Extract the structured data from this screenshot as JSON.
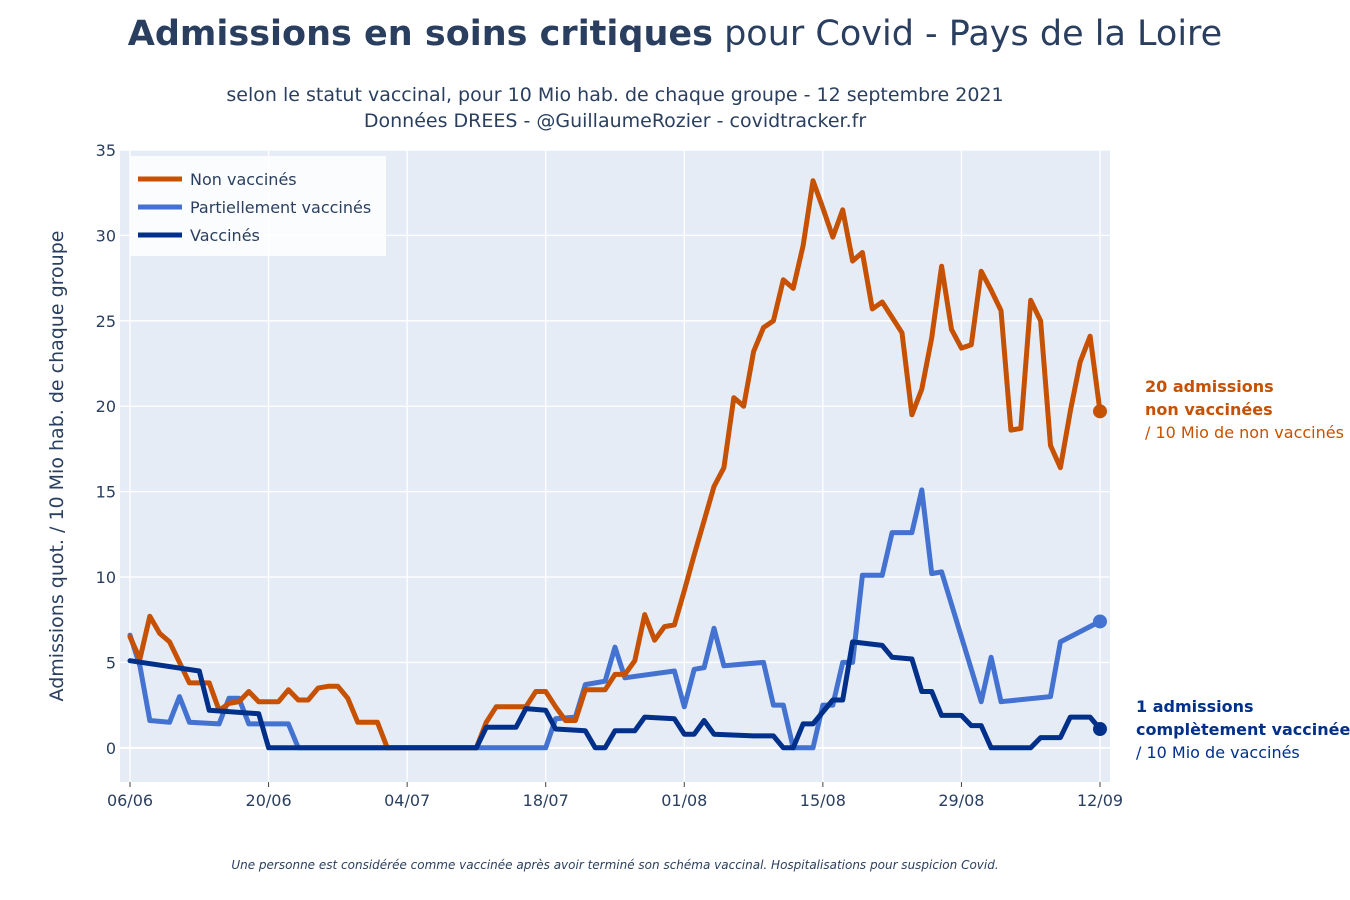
{
  "title": {
    "bold": "Admissions en soins critiques",
    "normal": " pour Covid - Pays de la Loire"
  },
  "subtitle": {
    "line1": "selon le statut vaccinal, pour 10 Mio hab. de chaque groupe - 12 septembre 2021",
    "line2": "Données DREES - @GuillaumeRozier - covidtracker.fr"
  },
  "footnote": "Une personne est considérée comme vaccinée après avoir terminé son schéma vaccinal. Hospitalisations pour suspicion Covid.",
  "annotations": {
    "unvax": {
      "line1": "20 admissions",
      "line2": "non vaccinées",
      "line3": "/ 10 Mio de non vaccinés"
    },
    "vax": {
      "line1": "1 admissions",
      "line2": "complètement vaccinée",
      "line3": "/ 10 Mio de vaccinés"
    }
  },
  "colors": {
    "unvax": "#c65102",
    "partial": "#4472d0",
    "vax": "#00308a",
    "plot_bg": "#e5ecf6",
    "text": "#2a3f5f"
  },
  "chart_data": {
    "type": "line",
    "ylabel": "Admissions quot. / 10 Mio hab. de chaque groupe",
    "ylim": [
      -2,
      35
    ],
    "yticks": [
      0,
      5,
      10,
      15,
      20,
      25,
      30,
      35
    ],
    "xlim": [
      "2021-06-06",
      "2021-09-12"
    ],
    "xticks": [
      {
        "date": "2021-06-06",
        "label": "06/06"
      },
      {
        "date": "2021-06-20",
        "label": "20/06"
      },
      {
        "date": "2021-07-04",
        "label": "04/07"
      },
      {
        "date": "2021-07-18",
        "label": "18/07"
      },
      {
        "date": "2021-08-01",
        "label": "01/08"
      },
      {
        "date": "2021-08-15",
        "label": "15/08"
      },
      {
        "date": "2021-08-29",
        "label": "29/08"
      },
      {
        "date": "2021-09-12",
        "label": "12/09"
      }
    ],
    "grid": true,
    "legend_position": "top-left",
    "series": [
      {
        "name": "Non vaccinés",
        "color": "#c65102",
        "points": [
          [
            "2021-06-06",
            6.5
          ],
          [
            "2021-06-07",
            5.2
          ],
          [
            "2021-06-08",
            7.7
          ],
          [
            "2021-06-09",
            6.7
          ],
          [
            "2021-06-10",
            6.2
          ],
          [
            "2021-06-11",
            5.0
          ],
          [
            "2021-06-12",
            3.8
          ],
          [
            "2021-06-13",
            3.8
          ],
          [
            "2021-06-14",
            3.8
          ],
          [
            "2021-06-15",
            2.2
          ],
          [
            "2021-06-16",
            2.6
          ],
          [
            "2021-06-17",
            2.7
          ],
          [
            "2021-06-18",
            3.3
          ],
          [
            "2021-06-19",
            2.7
          ],
          [
            "2021-06-20",
            2.7
          ],
          [
            "2021-06-21",
            2.7
          ],
          [
            "2021-06-22",
            3.4
          ],
          [
            "2021-06-23",
            2.8
          ],
          [
            "2021-06-24",
            2.8
          ],
          [
            "2021-06-25",
            3.5
          ],
          [
            "2021-06-26",
            3.6
          ],
          [
            "2021-06-27",
            3.6
          ],
          [
            "2021-06-28",
            2.9
          ],
          [
            "2021-06-29",
            1.5
          ],
          [
            "2021-06-30",
            1.5
          ],
          [
            "2021-07-01",
            1.5
          ],
          [
            "2021-07-02",
            0
          ],
          [
            "2021-07-03",
            0
          ],
          [
            "2021-07-04",
            0
          ],
          [
            "2021-07-05",
            0
          ],
          [
            "2021-07-06",
            0
          ],
          [
            "2021-07-07",
            0
          ],
          [
            "2021-07-08",
            0
          ],
          [
            "2021-07-09",
            0
          ],
          [
            "2021-07-10",
            0
          ],
          [
            "2021-07-11",
            0
          ],
          [
            "2021-07-12",
            1.5
          ],
          [
            "2021-07-13",
            2.4
          ],
          [
            "2021-07-14",
            2.4
          ],
          [
            "2021-07-15",
            2.4
          ],
          [
            "2021-07-16",
            2.4
          ],
          [
            "2021-07-17",
            3.3
          ],
          [
            "2021-07-18",
            3.3
          ],
          [
            "2021-07-19",
            2.4
          ],
          [
            "2021-07-20",
            1.6
          ],
          [
            "2021-07-21",
            1.6
          ],
          [
            "2021-07-22",
            3.4
          ],
          [
            "2021-07-23",
            3.4
          ],
          [
            "2021-07-24",
            3.4
          ],
          [
            "2021-07-25",
            4.3
          ],
          [
            "2021-07-26",
            4.3
          ],
          [
            "2021-07-27",
            5.1
          ],
          [
            "2021-07-28",
            7.8
          ],
          [
            "2021-07-29",
            6.3
          ],
          [
            "2021-07-30",
            7.1
          ],
          [
            "2021-07-31",
            7.2
          ],
          [
            "2021-08-01",
            9.2
          ],
          [
            "2021-08-02",
            11.3
          ],
          [
            "2021-08-03",
            13.3
          ],
          [
            "2021-08-04",
            15.3
          ],
          [
            "2021-08-05",
            16.4
          ],
          [
            "2021-08-06",
            20.5
          ],
          [
            "2021-08-07",
            20.0
          ],
          [
            "2021-08-08",
            23.2
          ],
          [
            "2021-08-09",
            24.6
          ],
          [
            "2021-08-10",
            25.0
          ],
          [
            "2021-08-11",
            27.4
          ],
          [
            "2021-08-12",
            26.9
          ],
          [
            "2021-08-13",
            29.4
          ],
          [
            "2021-08-14",
            33.2
          ],
          [
            "2021-08-15",
            31.6
          ],
          [
            "2021-08-16",
            29.9
          ],
          [
            "2021-08-17",
            31.5
          ],
          [
            "2021-08-18",
            28.5
          ],
          [
            "2021-08-19",
            29.0
          ],
          [
            "2021-08-20",
            25.7
          ],
          [
            "2021-08-21",
            26.1
          ],
          [
            "2021-08-22",
            25.2
          ],
          [
            "2021-08-23",
            24.3
          ],
          [
            "2021-08-24",
            19.5
          ],
          [
            "2021-08-25",
            21.0
          ],
          [
            "2021-08-26",
            24.0
          ],
          [
            "2021-08-27",
            28.2
          ],
          [
            "2021-08-28",
            24.5
          ],
          [
            "2021-08-29",
            23.4
          ],
          [
            "2021-08-30",
            23.6
          ],
          [
            "2021-08-31",
            27.9
          ],
          [
            "2021-09-01",
            26.8
          ],
          [
            "2021-09-02",
            25.6
          ],
          [
            "2021-09-03",
            18.6
          ],
          [
            "2021-09-04",
            18.7
          ],
          [
            "2021-09-05",
            26.2
          ],
          [
            "2021-09-06",
            25.0
          ],
          [
            "2021-09-07",
            17.7
          ],
          [
            "2021-09-08",
            16.4
          ],
          [
            "2021-09-09",
            19.7
          ],
          [
            "2021-09-10",
            22.6
          ],
          [
            "2021-09-11",
            24.1
          ],
          [
            "2021-09-12",
            19.7
          ]
        ]
      },
      {
        "name": "Partiellement vaccinés",
        "color": "#4472d0",
        "points": [
          [
            "2021-06-06",
            6.6
          ],
          [
            "2021-06-07",
            4.8
          ],
          [
            "2021-06-08",
            1.6
          ],
          [
            "2021-06-10",
            1.5
          ],
          [
            "2021-06-11",
            3.0
          ],
          [
            "2021-06-12",
            1.5
          ],
          [
            "2021-06-15",
            1.4
          ],
          [
            "2021-06-16",
            2.9
          ],
          [
            "2021-06-17",
            2.9
          ],
          [
            "2021-06-18",
            1.4
          ],
          [
            "2021-06-22",
            1.4
          ],
          [
            "2021-06-23",
            0
          ],
          [
            "2021-07-18",
            0
          ],
          [
            "2021-07-19",
            1.7
          ],
          [
            "2021-07-21",
            1.8
          ],
          [
            "2021-07-22",
            3.7
          ],
          [
            "2021-07-24",
            3.9
          ],
          [
            "2021-07-25",
            5.9
          ],
          [
            "2021-07-26",
            4.1
          ],
          [
            "2021-07-31",
            4.5
          ],
          [
            "2021-08-01",
            2.4
          ],
          [
            "2021-08-02",
            4.6
          ],
          [
            "2021-08-03",
            4.7
          ],
          [
            "2021-08-04",
            7.0
          ],
          [
            "2021-08-05",
            4.8
          ],
          [
            "2021-08-09",
            5.0
          ],
          [
            "2021-08-10",
            2.5
          ],
          [
            "2021-08-11",
            2.5
          ],
          [
            "2021-08-12",
            0
          ],
          [
            "2021-08-14",
            0
          ],
          [
            "2021-08-15",
            2.5
          ],
          [
            "2021-08-16",
            2.5
          ],
          [
            "2021-08-17",
            5.0
          ],
          [
            "2021-08-18",
            5.0
          ],
          [
            "2021-08-19",
            10.1
          ],
          [
            "2021-08-21",
            10.1
          ],
          [
            "2021-08-22",
            12.6
          ],
          [
            "2021-08-24",
            12.6
          ],
          [
            "2021-08-25",
            15.1
          ],
          [
            "2021-08-26",
            10.2
          ],
          [
            "2021-08-27",
            10.3
          ],
          [
            "2021-08-31",
            2.7
          ],
          [
            "2021-09-01",
            5.3
          ],
          [
            "2021-09-02",
            2.7
          ],
          [
            "2021-09-07",
            3.0
          ],
          [
            "2021-09-08",
            6.2
          ],
          [
            "2021-09-12",
            7.4
          ]
        ]
      },
      {
        "name": "Vaccinés",
        "color": "#00308a",
        "points": [
          [
            "2021-06-06",
            5.1
          ],
          [
            "2021-06-13",
            4.5
          ],
          [
            "2021-06-14",
            2.2
          ],
          [
            "2021-06-19",
            2.0
          ],
          [
            "2021-06-20",
            0
          ],
          [
            "2021-07-11",
            0
          ],
          [
            "2021-07-12",
            1.2
          ],
          [
            "2021-07-15",
            1.2
          ],
          [
            "2021-07-16",
            2.3
          ],
          [
            "2021-07-18",
            2.2
          ],
          [
            "2021-07-19",
            1.1
          ],
          [
            "2021-07-22",
            1.0
          ],
          [
            "2021-07-23",
            0
          ],
          [
            "2021-07-24",
            0
          ],
          [
            "2021-07-25",
            1.0
          ],
          [
            "2021-07-27",
            1.0
          ],
          [
            "2021-07-28",
            1.8
          ],
          [
            "2021-07-31",
            1.7
          ],
          [
            "2021-08-01",
            0.8
          ],
          [
            "2021-08-02",
            0.8
          ],
          [
            "2021-08-03",
            1.6
          ],
          [
            "2021-08-04",
            0.8
          ],
          [
            "2021-08-08",
            0.7
          ],
          [
            "2021-08-10",
            0.7
          ],
          [
            "2021-08-11",
            0
          ],
          [
            "2021-08-12",
            0
          ],
          [
            "2021-08-13",
            1.4
          ],
          [
            "2021-08-14",
            1.4
          ],
          [
            "2021-08-16",
            2.8
          ],
          [
            "2021-08-17",
            2.8
          ],
          [
            "2021-08-18",
            6.2
          ],
          [
            "2021-08-21",
            6.0
          ],
          [
            "2021-08-22",
            5.3
          ],
          [
            "2021-08-24",
            5.2
          ],
          [
            "2021-08-25",
            3.3
          ],
          [
            "2021-08-26",
            3.3
          ],
          [
            "2021-08-27",
            1.9
          ],
          [
            "2021-08-29",
            1.9
          ],
          [
            "2021-08-30",
            1.3
          ],
          [
            "2021-08-31",
            1.3
          ],
          [
            "2021-09-01",
            0
          ],
          [
            "2021-09-05",
            0
          ],
          [
            "2021-09-06",
            0.6
          ],
          [
            "2021-09-08",
            0.6
          ],
          [
            "2021-09-09",
            1.8
          ],
          [
            "2021-09-10",
            1.8
          ],
          [
            "2021-09-11",
            1.8
          ],
          [
            "2021-09-12",
            1.1
          ]
        ]
      }
    ]
  }
}
